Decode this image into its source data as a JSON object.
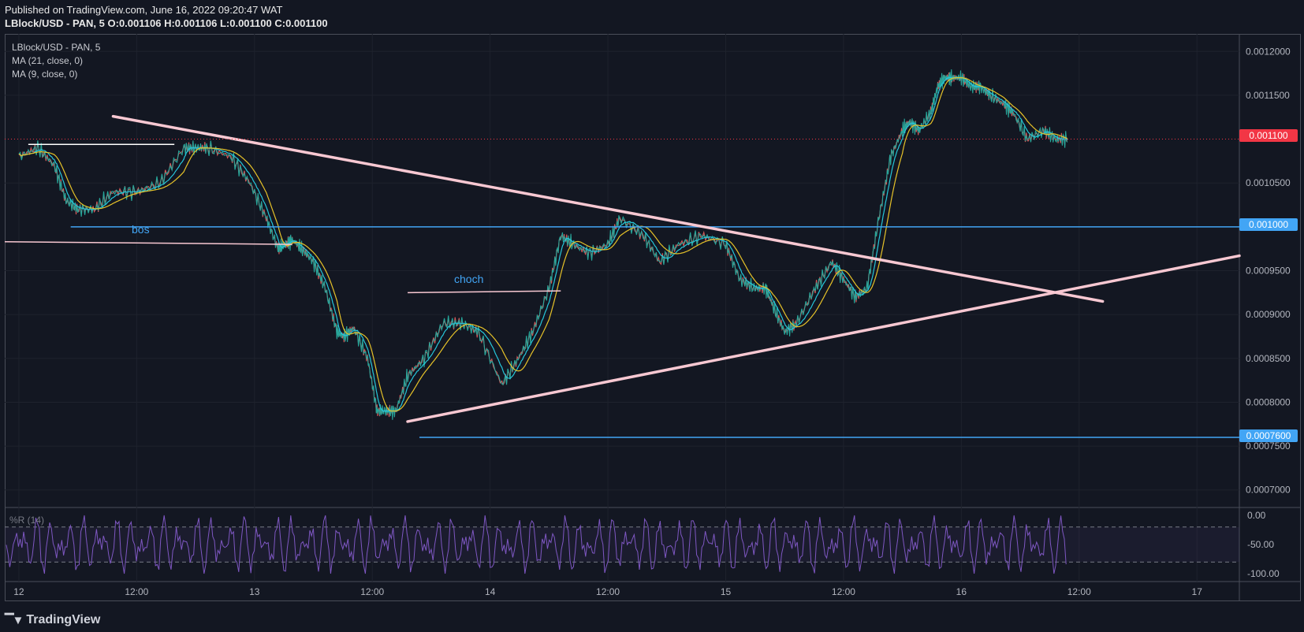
{
  "header": {
    "published": "Published on TradingView.com, June 16, 2022 09:20:47 WAT",
    "symbol_line": "LBlock/USD - PAN, 5",
    "open": "O:0.001106",
    "high": "H:0.001106",
    "low": "L:0.001100",
    "close": "C:0.001100"
  },
  "legend": {
    "symbol": "LBlock/USD - PAN, 5",
    "ma1": "MA (21, close, 0)",
    "ma2": "MA (9, close, 0)"
  },
  "oscillator": {
    "label": "%R (14)",
    "ticks": [
      "0.00",
      "-50.00",
      "-100.00"
    ]
  },
  "annotations": {
    "bos": "bos",
    "choch": "choch"
  },
  "badges": {
    "last_price": "0.001100",
    "level_1": "0.001000",
    "level_2": "0.0007600"
  },
  "brand": "TradingView",
  "colors": {
    "background": "#131722",
    "trendline": "#f8c8d2",
    "level_line": "#42a5f5",
    "last_price": "#f23645",
    "ma_fast": "#26c6da",
    "ma_slow": "#e6c229",
    "oscillator": "#7e57c2"
  },
  "chart_data": {
    "type": "line",
    "title": "LBlock/USD - PAN, 5",
    "x_ticks": [
      "12",
      "12:00",
      "13",
      "12:00",
      "14",
      "12:00",
      "15",
      "12:00",
      "16",
      "12:00",
      "17"
    ],
    "y_ticks": [
      "0.0007000",
      "0.0007500",
      "0.0008000",
      "0.0008500",
      "0.0009000",
      "0.0009500",
      "0.0010500",
      "0.0011500",
      "0.0012000"
    ],
    "ylim": [
      0.00068,
      0.00122
    ],
    "x_unit": "days from Jun 12 00:00",
    "xlim": [
      -0.06,
      5.18
    ],
    "series": [
      {
        "name": "LBlock/USD",
        "x": [
          0,
          0.08,
          0.15,
          0.2,
          0.25,
          0.32,
          0.4,
          0.5,
          0.6,
          0.7,
          0.75,
          0.8,
          0.9,
          0.98,
          1.05,
          1.1,
          1.13,
          1.16,
          1.2,
          1.25,
          1.3,
          1.35,
          1.38,
          1.42,
          1.48,
          1.52,
          1.56,
          1.6,
          1.65,
          1.72,
          1.8,
          1.88,
          1.95,
          2.05,
          2.12,
          2.18,
          2.25,
          2.3,
          2.35,
          2.42,
          2.5,
          2.55,
          2.65,
          2.72,
          2.8,
          2.9,
          3.0,
          3.06,
          3.12,
          3.17,
          3.2,
          3.25,
          3.3,
          3.38,
          3.45,
          3.5,
          3.55,
          3.6,
          3.65,
          3.7,
          3.75,
          3.78,
          3.82,
          3.87,
          3.9,
          3.93,
          3.96,
          4.0,
          4.04,
          4.08,
          4.12,
          4.18,
          4.22,
          4.28,
          4.35,
          4.4,
          4.45
        ],
        "values": [
          0.00108,
          0.00109,
          0.00107,
          0.00103,
          0.00102,
          0.00102,
          0.00104,
          0.00104,
          0.00105,
          0.00109,
          0.00109,
          0.00109,
          0.00108,
          0.00105,
          0.00101,
          0.000975,
          0.00098,
          0.000985,
          0.000975,
          0.00096,
          0.00093,
          0.00088,
          0.000875,
          0.000885,
          0.00085,
          0.00079,
          0.00079,
          0.00079,
          0.00083,
          0.00085,
          0.00089,
          0.00089,
          0.00088,
          0.00082,
          0.00085,
          0.00088,
          0.00093,
          0.00099,
          0.00098,
          0.00097,
          0.00098,
          0.00101,
          0.00099,
          0.00096,
          0.00098,
          0.00099,
          0.00098,
          0.00094,
          0.00093,
          0.00093,
          0.00091,
          0.00088,
          0.00089,
          0.00093,
          0.00096,
          0.00094,
          0.00092,
          0.00093,
          0.00101,
          0.00108,
          0.00111,
          0.00112,
          0.00111,
          0.00113,
          0.00116,
          0.00117,
          0.00117,
          0.00117,
          0.00116,
          0.00116,
          0.00115,
          0.00114,
          0.00113,
          0.0011,
          0.00111,
          0.0011,
          0.0011
        ]
      }
    ],
    "trendlines": [
      {
        "name": "descending",
        "x": [
          0.4,
          4.6
        ],
        "values": [
          0.001126,
          0.000915
        ]
      },
      {
        "name": "ascending",
        "x": [
          1.65,
          5.18
        ],
        "values": [
          0.000778,
          0.000967
        ]
      }
    ],
    "levels": [
      {
        "label": "bos",
        "value": 0.001,
        "x": [
          0.22,
          5.18
        ]
      },
      {
        "label": "",
        "value": 0.00076,
        "x": [
          1.7,
          5.18
        ]
      }
    ],
    "annotation_lines": [
      {
        "x": [
          0.04,
          0.66
        ],
        "values": [
          0.001094,
          0.001094
        ]
      },
      {
        "x": [
          -0.06,
          1.16
        ],
        "values": [
          0.000983,
          0.00098
        ]
      },
      {
        "x": [
          1.65,
          2.3
        ],
        "values": [
          0.000925,
          0.000927
        ]
      }
    ],
    "oscillator": {
      "name": "%R (14)",
      "ylim": [
        -100,
        0
      ],
      "levels": [
        -20,
        -80
      ]
    }
  }
}
